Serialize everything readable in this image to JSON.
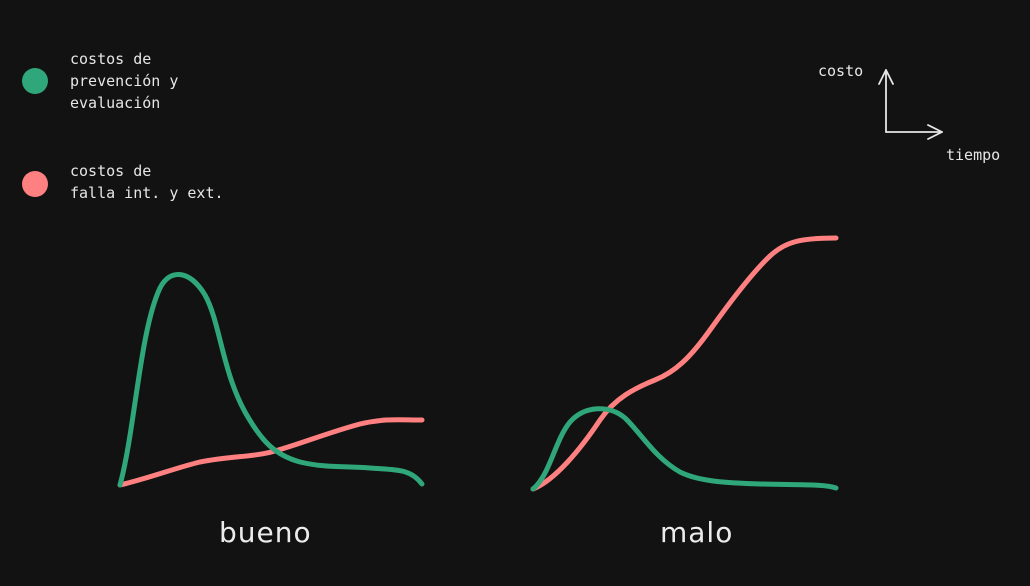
{
  "legend": {
    "items": [
      {
        "label": "costos de\nprevención y\nevaluación",
        "color": "#2fa77b"
      },
      {
        "label": "costos de\nfalla int. y ext.",
        "color": "#ff8080"
      }
    ]
  },
  "axes_key": {
    "y_label": "costo",
    "x_label": "tiempo"
  },
  "panels": [
    {
      "label": "bueno"
    },
    {
      "label": "malo"
    }
  ],
  "colors": {
    "background": "#121212",
    "prevention": "#2fa77b",
    "failure": "#ff8080",
    "text": "#e6e6e6"
  }
}
